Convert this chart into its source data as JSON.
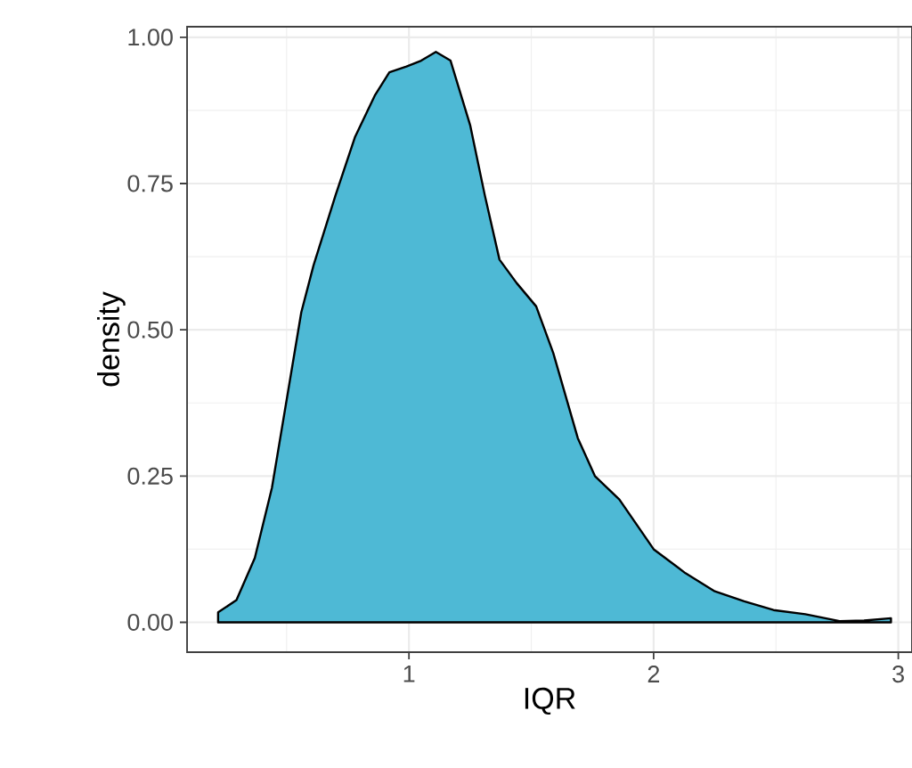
{
  "chart_data": {
    "type": "area",
    "xlabel": "IQR",
    "ylabel": "density",
    "x": [
      0.22,
      0.295,
      0.37,
      0.44,
      0.5,
      0.56,
      0.61,
      0.7,
      0.78,
      0.86,
      0.92,
      0.99,
      1.05,
      1.11,
      1.17,
      1.25,
      1.31,
      1.37,
      1.44,
      1.52,
      1.59,
      1.69,
      1.76,
      1.86,
      2.0,
      2.13,
      2.25,
      2.37,
      2.49,
      2.62,
      2.76,
      2.86,
      2.97
    ],
    "series": [
      {
        "color": "#4EB9D5",
        "values": [
          0.017,
          0.038,
          0.11,
          0.23,
          0.38,
          0.53,
          0.61,
          0.73,
          0.83,
          0.9,
          0.94,
          0.95,
          0.96,
          0.975,
          0.96,
          0.85,
          0.73,
          0.62,
          0.58,
          0.54,
          0.46,
          0.315,
          0.25,
          0.21,
          0.125,
          0.084,
          0.053,
          0.036,
          0.021,
          0.014,
          0.002,
          0.003,
          0.007
        ]
      }
    ],
    "xlim": [
      0.093,
      3.056
    ],
    "ylim": [
      -0.051,
      1.018
    ],
    "xticks": [
      1,
      2,
      3
    ],
    "yticks": [
      {
        "value": 0,
        "label": "0.00"
      },
      {
        "value": 0.25,
        "label": "0.25"
      },
      {
        "value": 0.5,
        "label": "0.50"
      },
      {
        "value": 0.75,
        "label": "0.75"
      },
      {
        "value": 1,
        "label": "1.00"
      }
    ],
    "grid": true
  }
}
